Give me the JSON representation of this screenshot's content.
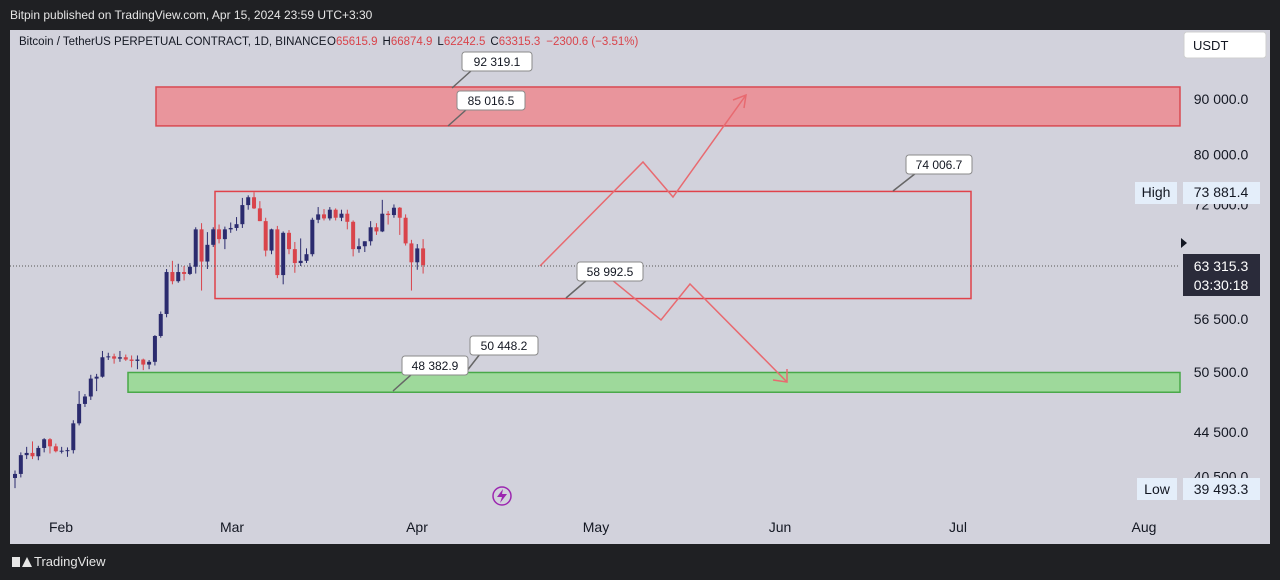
{
  "header": {
    "published_by": "Bitpin published on TradingView.com, Apr 15, 2024 23:59 UTC+3:30"
  },
  "legend": {
    "symbol": "Bitcoin / TetherUS PERPETUAL CONTRACT, 1D, BINANCE",
    "o_label": "O",
    "o_value": "65615.9",
    "h_label": "H",
    "h_value": "66874.9",
    "l_label": "L",
    "l_value": "62242.5",
    "c_label": "C",
    "c_value": "63315.3",
    "change": "−2300.6 (−3.51%)"
  },
  "currency_button": "USDT",
  "footer": {
    "brand": "TradingView"
  },
  "colors": {
    "up": "#2b2b6e",
    "down": "#d9444b",
    "resistance_zone": "#e9959c",
    "support_zone": "#9ed99b",
    "arrow": "#e86a70",
    "panel_bg": "#d2d2dc"
  },
  "chart_data": {
    "type": "candlestick",
    "timeframe": "1D",
    "price_axis": {
      "ticks": [
        {
          "value": 90000,
          "label": "90 000.0"
        },
        {
          "value": 80000,
          "label": "80 000.0"
        },
        {
          "value": 72000,
          "label": "72 000.0"
        },
        {
          "value": 56500,
          "label": "56 500.0"
        },
        {
          "value": 50500,
          "label": "50 500.0"
        },
        {
          "value": 44500,
          "label": "44 500.0"
        },
        {
          "value": 40500,
          "label": "40 500.0"
        }
      ]
    },
    "time_axis": {
      "labels": [
        "Feb",
        "Mar",
        "Apr",
        "May",
        "Jun",
        "Jul",
        "Aug"
      ]
    },
    "high_marker": {
      "label": "High",
      "value": "73 881.4"
    },
    "low_marker": {
      "label": "Low",
      "value": "39 493.3"
    },
    "last_price": {
      "value": "63 315.3",
      "countdown": "03:30:18"
    },
    "callouts": [
      "92 319.1",
      "85 016.5",
      "74 006.7",
      "58 992.5",
      "50 448.2",
      "48 382.9"
    ],
    "zones": [
      {
        "name": "resistance",
        "low": 85016.5,
        "high": 92319.1
      },
      {
        "name": "range",
        "low": 58992.5,
        "high": 74006.7
      },
      {
        "name": "support",
        "low": 48382.9,
        "high": 50448.2
      }
    ],
    "candles": [
      [
        40350,
        41000,
        39493,
        40700
      ],
      [
        40700,
        42600,
        40400,
        42350
      ],
      [
        42350,
        43100,
        42000,
        42550
      ],
      [
        42550,
        43600,
        42000,
        42250
      ],
      [
        42250,
        43200,
        41900,
        43000
      ],
      [
        43000,
        43900,
        42600,
        43800
      ],
      [
        43800,
        43900,
        42500,
        43150
      ],
      [
        43150,
        43400,
        42600,
        42700
      ],
      [
        42700,
        43100,
        42500,
        42750
      ],
      [
        42750,
        43050,
        42200,
        42800
      ],
      [
        42800,
        45600,
        42500,
        45300
      ],
      [
        45300,
        48500,
        45100,
        47200
      ],
      [
        47200,
        48200,
        46900,
        47950
      ],
      [
        47950,
        50200,
        47600,
        49800
      ],
      [
        49800,
        50300,
        48500,
        50000
      ],
      [
        50000,
        52800,
        49900,
        52100
      ],
      [
        52100,
        52600,
        51800,
        52200
      ],
      [
        52200,
        52500,
        51400,
        51950
      ],
      [
        51950,
        52800,
        51600,
        52100
      ],
      [
        52100,
        52400,
        51700,
        51850
      ],
      [
        51850,
        52300,
        51000,
        51700
      ],
      [
        51700,
        52300,
        50800,
        51850
      ],
      [
        51850,
        51950,
        50700,
        51300
      ],
      [
        51300,
        51800,
        50800,
        51600
      ],
      [
        51600,
        54600,
        51200,
        54500
      ],
      [
        54500,
        57400,
        54300,
        57100
      ],
      [
        57100,
        62800,
        56700,
        62400
      ],
      [
        62400,
        63900,
        60800,
        61200
      ],
      [
        61200,
        63500,
        61000,
        62400
      ],
      [
        62400,
        63200,
        61300,
        62150
      ],
      [
        62150,
        63600,
        62000,
        63100
      ],
      [
        63100,
        68600,
        62200,
        68300
      ],
      [
        68300,
        69200,
        60000,
        63800
      ],
      [
        63800,
        67900,
        62800,
        66100
      ],
      [
        66100,
        68600,
        65800,
        68300
      ],
      [
        68300,
        69000,
        66300,
        66900
      ],
      [
        66900,
        68700,
        65500,
        68300
      ],
      [
        68300,
        69300,
        67800,
        68500
      ],
      [
        68500,
        70100,
        68100,
        69050
      ],
      [
        69050,
        73000,
        68500,
        71900
      ],
      [
        71900,
        73400,
        71200,
        73100
      ],
      [
        73100,
        73881.4,
        71300,
        71400
      ],
      [
        71400,
        72500,
        69500,
        69500
      ],
      [
        69500,
        70000,
        64500,
        65300
      ],
      [
        65300,
        68400,
        64800,
        68300
      ],
      [
        68300,
        68800,
        61600,
        62000
      ],
      [
        62000,
        68000,
        60800,
        67800
      ],
      [
        67800,
        68200,
        64800,
        65500
      ],
      [
        65500,
        66500,
        62300,
        63600
      ],
      [
        63600,
        67000,
        63200,
        63900
      ],
      [
        63900,
        65600,
        63600,
        64800
      ],
      [
        64800,
        70000,
        64500,
        69700
      ],
      [
        69700,
        71600,
        69200,
        70500
      ],
      [
        70500,
        71300,
        69600,
        69900
      ],
      [
        69900,
        71600,
        69600,
        71200
      ],
      [
        71200,
        71400,
        69600,
        70000
      ],
      [
        70000,
        71200,
        69500,
        70600
      ],
      [
        70600,
        71200,
        68300,
        69400
      ],
      [
        69400,
        69600,
        64500,
        65500
      ],
      [
        65500,
        67000,
        65000,
        65900
      ],
      [
        65900,
        66600,
        65100,
        66600
      ],
      [
        66600,
        69500,
        66000,
        68600
      ],
      [
        68600,
        69200,
        67500,
        68000
      ],
      [
        68000,
        72700,
        67900,
        70600
      ],
      [
        70600,
        71000,
        69000,
        70400
      ],
      [
        70400,
        72000,
        70000,
        71500
      ],
      [
        71500,
        71600,
        67500,
        70000
      ],
      [
        70000,
        70500,
        66000,
        66300
      ],
      [
        66300,
        66800,
        60000,
        63700
      ],
      [
        63700,
        66200,
        62700,
        65600
      ],
      [
        65600,
        66900,
        62200,
        63315.3
      ]
    ]
  }
}
